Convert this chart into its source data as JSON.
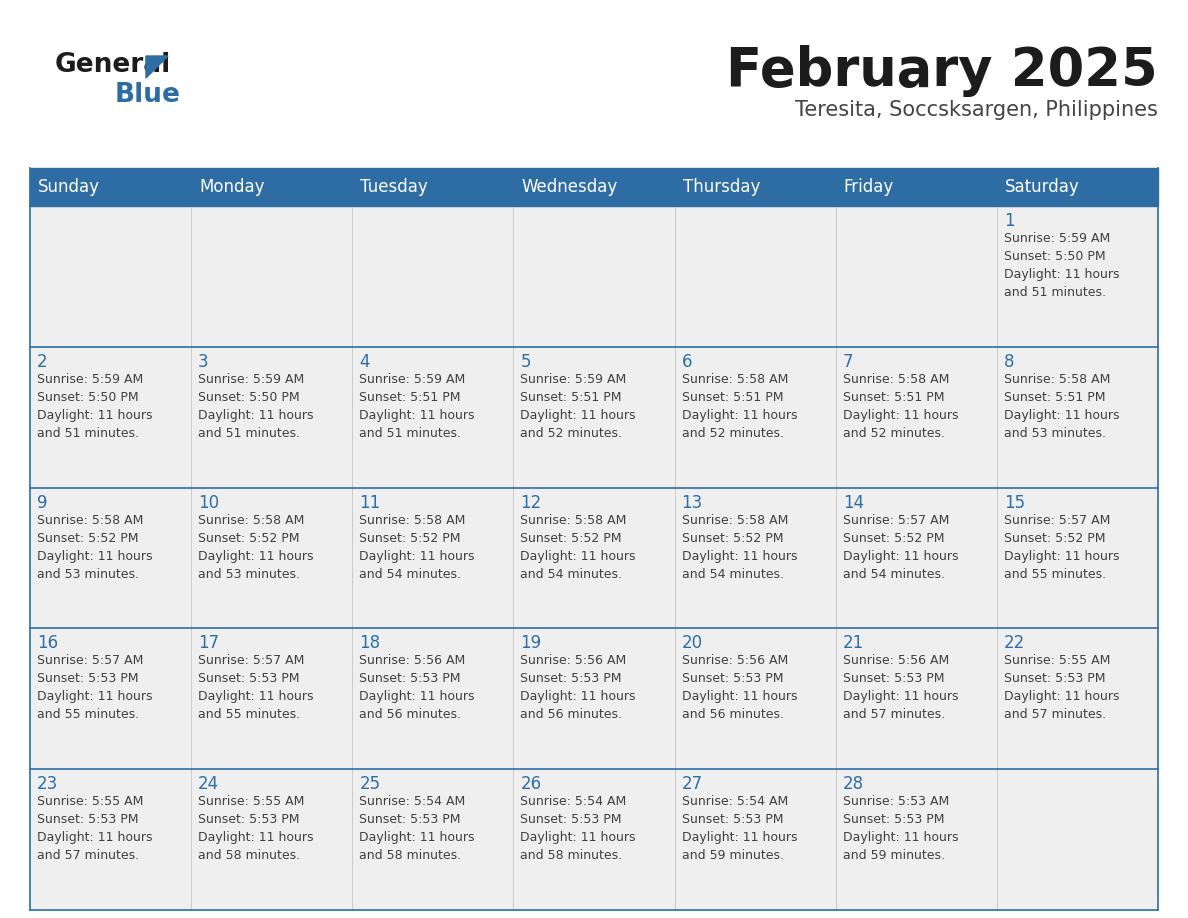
{
  "title": "February 2025",
  "subtitle": "Teresita, Soccsksargen, Philippines",
  "header_bg": "#2E6DA4",
  "header_text_color": "#FFFFFF",
  "cell_bg_odd": "#EFEFEF",
  "cell_bg_even": "#FFFFFF",
  "day_number_color": "#2E6DA4",
  "text_color": "#404040",
  "line_color": "#2E6DA4",
  "days_of_week": [
    "Sunday",
    "Monday",
    "Tuesday",
    "Wednesday",
    "Thursday",
    "Friday",
    "Saturday"
  ],
  "calendar_data": [
    [
      null,
      null,
      null,
      null,
      null,
      null,
      {
        "day": 1,
        "sunrise": "5:59 AM",
        "sunset": "5:50 PM",
        "daylight": "11 hours and 51 minutes."
      }
    ],
    [
      {
        "day": 2,
        "sunrise": "5:59 AM",
        "sunset": "5:50 PM",
        "daylight": "11 hours and 51 minutes."
      },
      {
        "day": 3,
        "sunrise": "5:59 AM",
        "sunset": "5:50 PM",
        "daylight": "11 hours and 51 minutes."
      },
      {
        "day": 4,
        "sunrise": "5:59 AM",
        "sunset": "5:51 PM",
        "daylight": "11 hours and 51 minutes."
      },
      {
        "day": 5,
        "sunrise": "5:59 AM",
        "sunset": "5:51 PM",
        "daylight": "11 hours and 52 minutes."
      },
      {
        "day": 6,
        "sunrise": "5:58 AM",
        "sunset": "5:51 PM",
        "daylight": "11 hours and 52 minutes."
      },
      {
        "day": 7,
        "sunrise": "5:58 AM",
        "sunset": "5:51 PM",
        "daylight": "11 hours and 52 minutes."
      },
      {
        "day": 8,
        "sunrise": "5:58 AM",
        "sunset": "5:51 PM",
        "daylight": "11 hours and 53 minutes."
      }
    ],
    [
      {
        "day": 9,
        "sunrise": "5:58 AM",
        "sunset": "5:52 PM",
        "daylight": "11 hours and 53 minutes."
      },
      {
        "day": 10,
        "sunrise": "5:58 AM",
        "sunset": "5:52 PM",
        "daylight": "11 hours and 53 minutes."
      },
      {
        "day": 11,
        "sunrise": "5:58 AM",
        "sunset": "5:52 PM",
        "daylight": "11 hours and 54 minutes."
      },
      {
        "day": 12,
        "sunrise": "5:58 AM",
        "sunset": "5:52 PM",
        "daylight": "11 hours and 54 minutes."
      },
      {
        "day": 13,
        "sunrise": "5:58 AM",
        "sunset": "5:52 PM",
        "daylight": "11 hours and 54 minutes."
      },
      {
        "day": 14,
        "sunrise": "5:57 AM",
        "sunset": "5:52 PM",
        "daylight": "11 hours and 54 minutes."
      },
      {
        "day": 15,
        "sunrise": "5:57 AM",
        "sunset": "5:52 PM",
        "daylight": "11 hours and 55 minutes."
      }
    ],
    [
      {
        "day": 16,
        "sunrise": "5:57 AM",
        "sunset": "5:53 PM",
        "daylight": "11 hours and 55 minutes."
      },
      {
        "day": 17,
        "sunrise": "5:57 AM",
        "sunset": "5:53 PM",
        "daylight": "11 hours and 55 minutes."
      },
      {
        "day": 18,
        "sunrise": "5:56 AM",
        "sunset": "5:53 PM",
        "daylight": "11 hours and 56 minutes."
      },
      {
        "day": 19,
        "sunrise": "5:56 AM",
        "sunset": "5:53 PM",
        "daylight": "11 hours and 56 minutes."
      },
      {
        "day": 20,
        "sunrise": "5:56 AM",
        "sunset": "5:53 PM",
        "daylight": "11 hours and 56 minutes."
      },
      {
        "day": 21,
        "sunrise": "5:56 AM",
        "sunset": "5:53 PM",
        "daylight": "11 hours and 57 minutes."
      },
      {
        "day": 22,
        "sunrise": "5:55 AM",
        "sunset": "5:53 PM",
        "daylight": "11 hours and 57 minutes."
      }
    ],
    [
      {
        "day": 23,
        "sunrise": "5:55 AM",
        "sunset": "5:53 PM",
        "daylight": "11 hours and 57 minutes."
      },
      {
        "day": 24,
        "sunrise": "5:55 AM",
        "sunset": "5:53 PM",
        "daylight": "11 hours and 58 minutes."
      },
      {
        "day": 25,
        "sunrise": "5:54 AM",
        "sunset": "5:53 PM",
        "daylight": "11 hours and 58 minutes."
      },
      {
        "day": 26,
        "sunrise": "5:54 AM",
        "sunset": "5:53 PM",
        "daylight": "11 hours and 58 minutes."
      },
      {
        "day": 27,
        "sunrise": "5:54 AM",
        "sunset": "5:53 PM",
        "daylight": "11 hours and 59 minutes."
      },
      {
        "day": 28,
        "sunrise": "5:53 AM",
        "sunset": "5:53 PM",
        "daylight": "11 hours and 59 minutes."
      },
      null
    ]
  ],
  "title_fontsize": 38,
  "subtitle_fontsize": 15,
  "header_fontsize": 12,
  "day_num_fontsize": 12,
  "cell_text_fontsize": 9
}
